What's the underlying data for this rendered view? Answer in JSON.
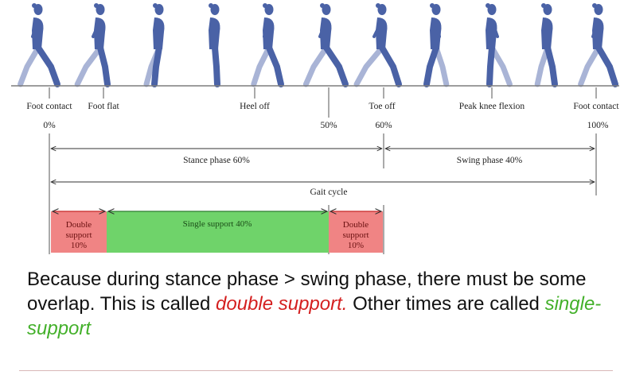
{
  "events": [
    {
      "label": "Foot contact",
      "percent": "0%"
    },
    {
      "label": "Foot flat",
      "percent": ""
    },
    {
      "label": "Heel off",
      "percent": ""
    },
    {
      "label": "",
      "percent": "50%"
    },
    {
      "label": "Toe off",
      "percent": "60%"
    },
    {
      "label": "Peak knee flexion",
      "percent": ""
    },
    {
      "label": "Foot contact",
      "percent": "100%"
    }
  ],
  "phases": {
    "stance": "Stance phase 60%",
    "swing": "Swing phase 40%",
    "cycle": "Gait cycle"
  },
  "support_bars": [
    {
      "lines": [
        "Double",
        "support",
        "10%"
      ],
      "color": "#f08484"
    },
    {
      "lines": [
        "Single support 40%"
      ],
      "color": "#6fd36a"
    },
    {
      "lines": [
        "Double",
        "support",
        "10%"
      ],
      "color": "#f08484"
    }
  ],
  "caption": {
    "part1": "Because during stance phase > swing phase, there must be some overlap. This is called ",
    "double": "double support.",
    "part2": " Other times are called ",
    "single": "single-support"
  },
  "colors": {
    "figure_front": "#4a62a6",
    "figure_back": "#a9b4d6",
    "double_support": "#f08484",
    "single_support": "#6fd36a",
    "double_text": "#d41f1f",
    "single_text": "#43b02a"
  }
}
